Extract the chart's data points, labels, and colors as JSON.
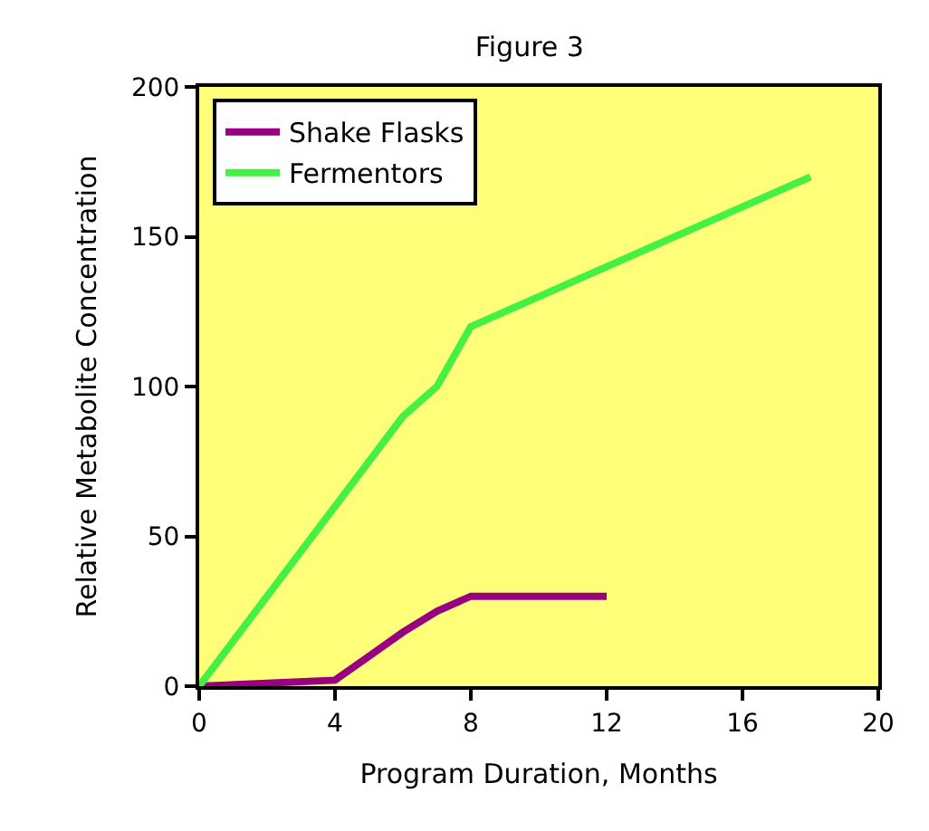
{
  "chart_data": {
    "type": "line",
    "title": "Figure 3",
    "xlabel": "Program Duration, Months",
    "ylabel": "Relative Metabolite Concentration",
    "series": [
      {
        "name": "Shake Flasks",
        "color": "#990080",
        "x": [
          0,
          4,
          5,
          6,
          7,
          8,
          12
        ],
        "values": [
          0,
          2,
          10,
          18,
          25,
          30,
          30
        ]
      },
      {
        "name": "Fermentors",
        "color": "#44f044",
        "x": [
          0,
          6,
          7,
          8,
          12,
          18
        ],
        "values": [
          0,
          90,
          100,
          120,
          140,
          170
        ]
      }
    ],
    "xlim": [
      0,
      20
    ],
    "xticks": [
      0,
      4,
      8,
      12,
      16,
      20
    ],
    "ylim": [
      0,
      200
    ],
    "yticks": [
      0,
      50,
      100,
      150,
      200
    ],
    "grid": false,
    "legend": "top left",
    "marker": "none",
    "line_style": "solid"
  }
}
